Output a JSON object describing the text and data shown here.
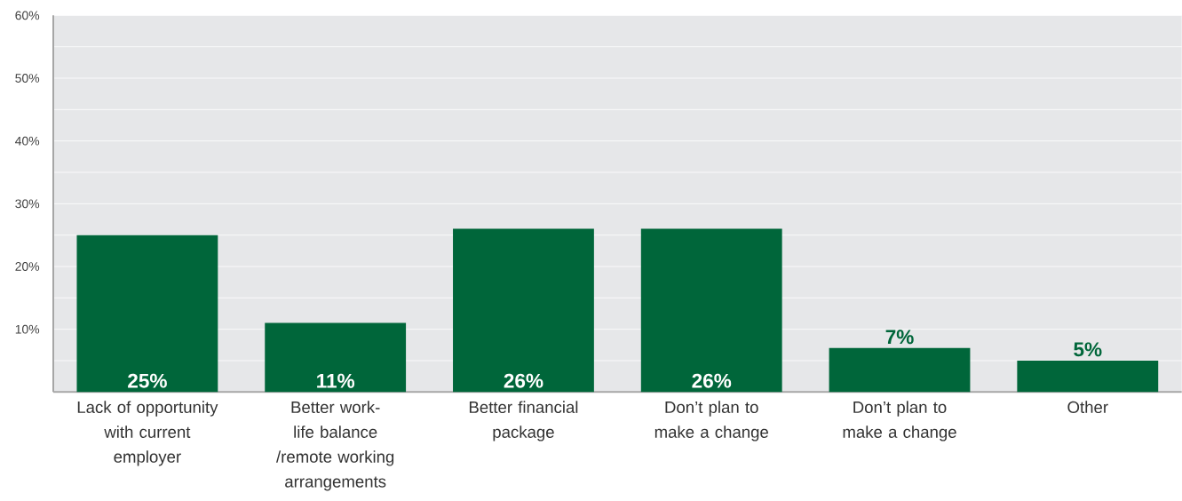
{
  "chart_data": {
    "type": "bar",
    "categories": [
      "Lack of opportunity with current employer",
      "Better work-life balance /remote working arrangements",
      "Better financial package",
      "Don’t plan to make a change",
      "Don’t plan to make a change",
      "Other"
    ],
    "values": [
      25,
      11,
      26,
      26,
      7,
      5
    ],
    "value_labels": [
      "25%",
      "11%",
      "26%",
      "26%",
      "7%",
      "5%"
    ],
    "color": "#00663a",
    "ylim": [
      0,
      60
    ],
    "yticks": [
      {
        "value": 0,
        "label": null
      },
      {
        "value": 5,
        "label": null
      },
      {
        "value": 10,
        "label": "10%"
      },
      {
        "value": 15,
        "label": null
      },
      {
        "value": 20,
        "label": "20%"
      },
      {
        "value": 25,
        "label": null
      },
      {
        "value": 30,
        "label": "30%"
      },
      {
        "value": 35,
        "label": null
      },
      {
        "value": 40,
        "label": "40%"
      },
      {
        "value": 45,
        "label": null
      },
      {
        "value": 50,
        "label": "50%"
      },
      {
        "value": 55,
        "label": null
      },
      {
        "value": 60,
        "label": "60%"
      }
    ],
    "grid": "y"
  }
}
